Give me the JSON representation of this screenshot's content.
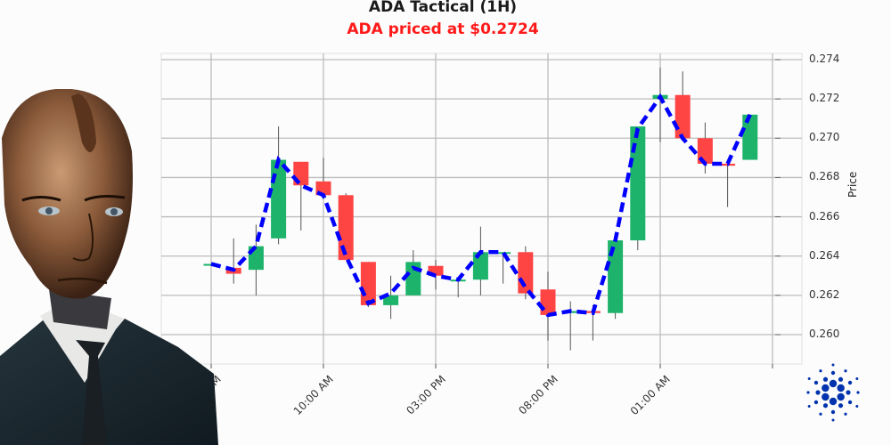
{
  "header": {
    "title": "ADA Tactical (1H)",
    "subtitle": "ADA priced at $0.2724"
  },
  "colors": {
    "up": "#1db36b",
    "down": "#ff4444",
    "trend_line": "#0000ff",
    "subtitle": "#ff1a1a",
    "grid": "#bdbdbd",
    "logo": "#0033ad"
  },
  "chart_data": {
    "type": "candlestick",
    "title": "ADA Tactical (1H)",
    "subtitle": "ADA priced at $0.2724",
    "xlabel": "",
    "ylabel": "Price",
    "y_axis_side": "right",
    "ylim": [
      0.2592,
      0.2746
    ],
    "yticks": [
      "0.260",
      "0.262",
      "0.264",
      "0.266",
      "0.268",
      "0.270",
      "0.272",
      "0.274"
    ],
    "xticks": [
      "05:00 AM",
      "10:00 AM",
      "03:00 PM",
      "08:00 PM",
      "01:00 AM",
      ""
    ],
    "xtick_visible_text": [
      "00 AM",
      "10:00 AM",
      "03:00 PM",
      "08:00 PM",
      "01:00 AM"
    ],
    "grid": true,
    "candles": [
      {
        "o": 0.2636,
        "h": 0.2636,
        "l": 0.2635,
        "c": 0.2636
      },
      {
        "o": 0.2634,
        "h": 0.2649,
        "l": 0.2626,
        "c": 0.2631
      },
      {
        "o": 0.2633,
        "h": 0.2656,
        "l": 0.262,
        "c": 0.2645
      },
      {
        "o": 0.2649,
        "h": 0.2706,
        "l": 0.2646,
        "c": 0.2689
      },
      {
        "o": 0.2688,
        "h": 0.2688,
        "l": 0.2653,
        "c": 0.2676
      },
      {
        "o": 0.2678,
        "h": 0.269,
        "l": 0.2669,
        "c": 0.2671
      },
      {
        "o": 0.2671,
        "h": 0.2672,
        "l": 0.2638,
        "c": 0.2638
      },
      {
        "o": 0.2637,
        "h": 0.2637,
        "l": 0.2614,
        "c": 0.2615
      },
      {
        "o": 0.2615,
        "h": 0.263,
        "l": 0.2608,
        "c": 0.262
      },
      {
        "o": 0.262,
        "h": 0.2643,
        "l": 0.262,
        "c": 0.2637
      },
      {
        "o": 0.2635,
        "h": 0.2638,
        "l": 0.2623,
        "c": 0.263
      },
      {
        "o": 0.2628,
        "h": 0.2628,
        "l": 0.2619,
        "c": 0.2628
      },
      {
        "o": 0.2628,
        "h": 0.2655,
        "l": 0.262,
        "c": 0.2642
      },
      {
        "o": 0.2642,
        "h": 0.2642,
        "l": 0.2626,
        "c": 0.2642
      },
      {
        "o": 0.2642,
        "h": 0.2645,
        "l": 0.2618,
        "c": 0.2621
      },
      {
        "o": 0.2623,
        "h": 0.2632,
        "l": 0.2597,
        "c": 0.261
      },
      {
        "o": 0.2611,
        "h": 0.2617,
        "l": 0.2592,
        "c": 0.2612
      },
      {
        "o": 0.2612,
        "h": 0.2615,
        "l": 0.2597,
        "c": 0.2611
      },
      {
        "o": 0.2611,
        "h": 0.2648,
        "l": 0.2608,
        "c": 0.2648
      },
      {
        "o": 0.2648,
        "h": 0.2706,
        "l": 0.2643,
        "c": 0.2706
      },
      {
        "o": 0.272,
        "h": 0.2736,
        "l": 0.2698,
        "c": 0.2722
      },
      {
        "o": 0.2722,
        "h": 0.2734,
        "l": 0.27,
        "c": 0.27
      },
      {
        "o": 0.27,
        "h": 0.2708,
        "l": 0.2682,
        "c": 0.2687
      },
      {
        "o": 0.2687,
        "h": 0.2687,
        "l": 0.2665,
        "c": 0.2686
      },
      {
        "o": 0.2689,
        "h": 0.2712,
        "l": 0.2689,
        "c": 0.2712
      }
    ],
    "trend_line": [
      0.2636,
      0.2633,
      0.2645,
      0.2689,
      0.2676,
      0.2671,
      0.264,
      0.2616,
      0.2621,
      0.2634,
      0.263,
      0.2628,
      0.2642,
      0.2642,
      0.2624,
      0.261,
      0.2612,
      0.2611,
      0.2648,
      0.2705,
      0.2721,
      0.27,
      0.2687,
      0.2687,
      0.2712
    ]
  },
  "branding": {
    "avatar": "ai-trader-avatar",
    "logo": "cardano-logo"
  }
}
